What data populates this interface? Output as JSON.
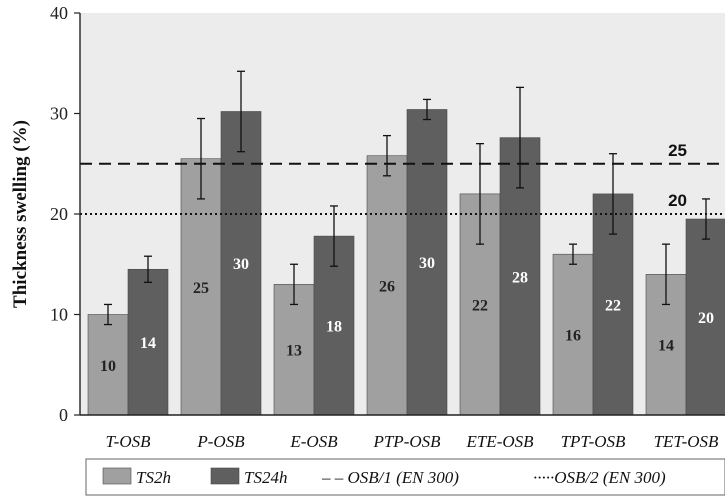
{
  "chart_data": {
    "type": "bar",
    "title": "",
    "xlabel": "",
    "ylabel": "Thickness swelling (%)",
    "ylim": [
      0,
      40
    ],
    "yticks": [
      0,
      10,
      20,
      30,
      40
    ],
    "grid": false,
    "legend_position": "bottom",
    "categories": [
      "T-OSB",
      "P-OSB",
      "E-OSB",
      "PTP-OSB",
      "ETE-OSB",
      "TPT-OSB",
      "TET-OSB"
    ],
    "series": [
      {
        "name": "TS2h",
        "color": "#a0a0a0",
        "values": [
          10,
          25.5,
          13,
          25.8,
          22,
          16,
          14
        ],
        "error": [
          1,
          4,
          2,
          2,
          5,
          1,
          3
        ],
        "labels": [
          "10",
          "25",
          "13",
          "26",
          "22",
          "16",
          "14"
        ]
      },
      {
        "name": "TS24h",
        "color": "#5f5f5f",
        "values": [
          14.5,
          30.2,
          17.8,
          30.4,
          27.6,
          22,
          19.5
        ],
        "error": [
          1.3,
          4,
          3,
          1,
          5,
          4,
          2
        ],
        "labels": [
          "14",
          "30",
          "18",
          "30",
          "28",
          "22",
          "20"
        ]
      }
    ],
    "reference_lines": [
      {
        "name": "OSB/1 (EN 300)",
        "value": 25,
        "label": "25",
        "style": "dashed"
      },
      {
        "name": "OSB/2 (EN 300)",
        "value": 20,
        "label": "20",
        "style": "dotted"
      }
    ],
    "legend": [
      {
        "key": "ts2h",
        "marker": "box",
        "label": "TS2h"
      },
      {
        "key": "ts24h",
        "marker": "box",
        "label": "TS24h"
      },
      {
        "key": "osb1",
        "marker": "dashed",
        "label": "– – OSB/1 (EN 300)"
      },
      {
        "key": "osb2",
        "marker": "dotted",
        "label": "·····OSB/2 (EN 300)"
      }
    ]
  }
}
